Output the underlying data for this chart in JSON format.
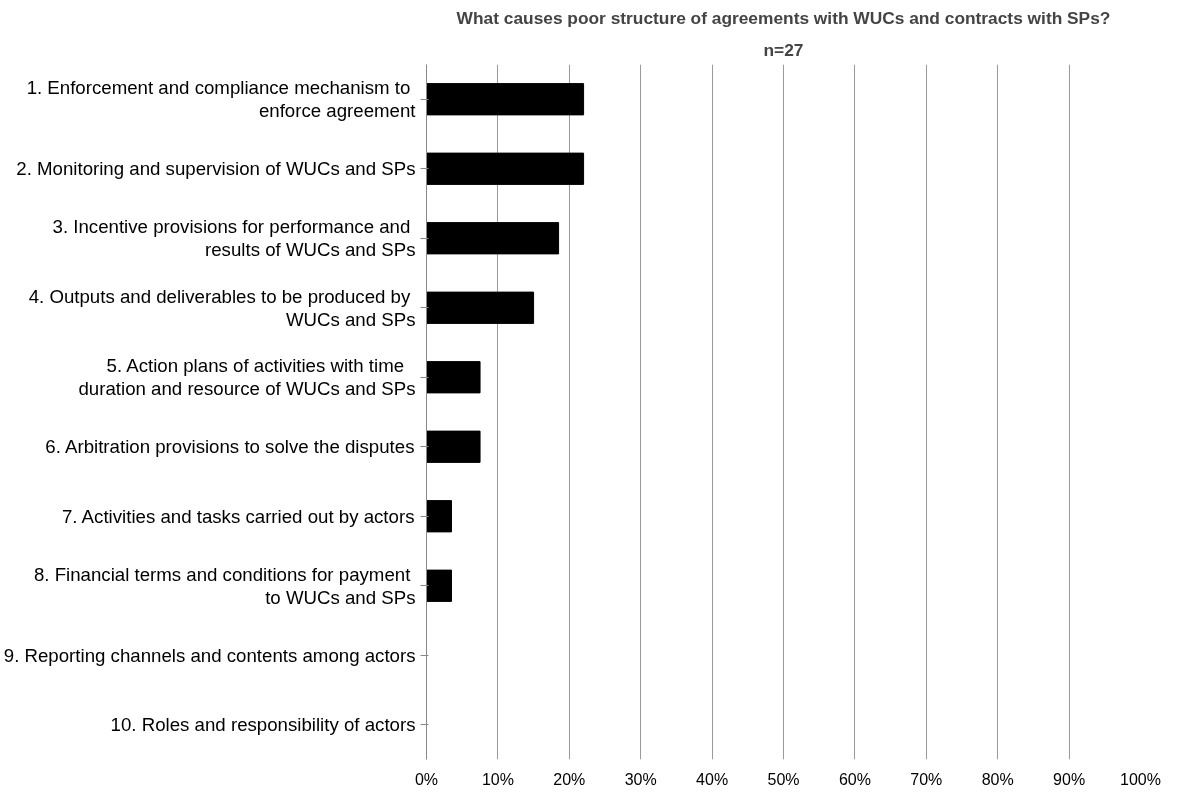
{
  "chart_data": {
    "type": "bar",
    "orientation": "horizontal",
    "title": "What causes poor structure of agreements with WUCs and contracts with SPs?",
    "subtitle": "n=27",
    "categories": [
      "1. Enforcement and compliance mechanism to enforce agreement",
      "2. Monitoring and supervision of WUCs and SPs",
      "3. Incentive provisions for performance and results of WUCs and SPs",
      "4. Outputs and deliverables to be produced by WUCs and SPs",
      "5.  Action plans of activities with time duration and resource of WUCs and SPs",
      "6. Arbitration provisions to solve the disputes",
      "7. Activities and tasks carried out by actors",
      "8. Financial terms and conditions for payment to WUCs and SPs",
      "9. Reporting channels and contents among actors",
      "10. Roles and responsibility of actors"
    ],
    "values": [
      22,
      22,
      18.5,
      15,
      7.5,
      7.5,
      3.5,
      3.5,
      0,
      0
    ],
    "color": "#000000",
    "xlim": [
      0,
      100
    ],
    "xticks": [
      {
        "value": 0,
        "label": "0%"
      },
      {
        "value": 10,
        "label": "10%"
      },
      {
        "value": 20,
        "label": "20%"
      },
      {
        "value": 30,
        "label": "30%"
      },
      {
        "value": 40,
        "label": "40%"
      },
      {
        "value": 50,
        "label": "50%"
      },
      {
        "value": 60,
        "label": "60%"
      },
      {
        "value": 70,
        "label": "70%"
      },
      {
        "value": 80,
        "label": "80%"
      },
      {
        "value": 90,
        "label": "90%"
      },
      {
        "value": 100,
        "label": "100%"
      }
    ],
    "grid": "x"
  }
}
